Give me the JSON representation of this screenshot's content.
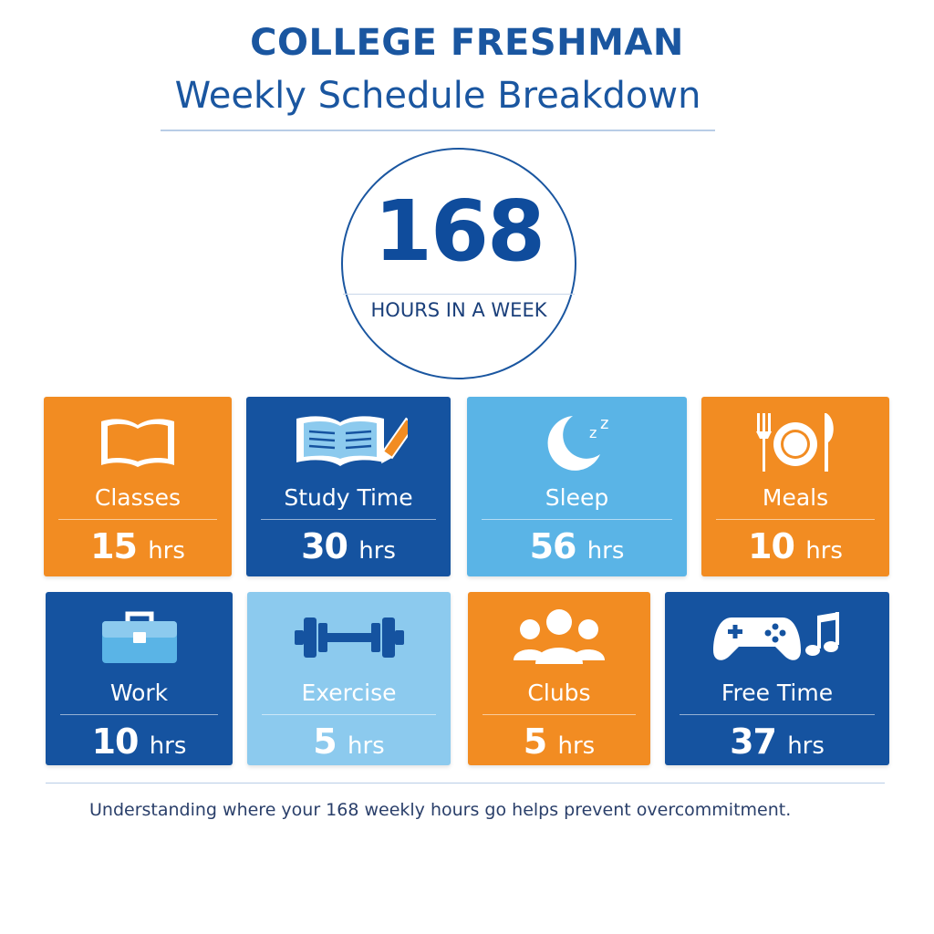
{
  "header": {
    "title": "COLLEGE FRESHMAN",
    "subtitle": "Weekly Schedule Breakdown"
  },
  "total": {
    "number": "168",
    "label": "HOURS IN A WEEK"
  },
  "colors": {
    "orange": "#f28c22",
    "dark_blue": "#1553a0",
    "light_blue": "#5ab4e6",
    "pale_blue": "#8ccaee",
    "accent_text": "#1a56a0"
  },
  "activities": [
    {
      "label": "Classes",
      "value": "15",
      "unit": "hrs",
      "icon": "open-book-icon"
    },
    {
      "label": "Study Time",
      "value": "30",
      "unit": "hrs",
      "icon": "book-pencil-icon"
    },
    {
      "label": "Sleep",
      "value": "56",
      "unit": "hrs",
      "icon": "moon-icon"
    },
    {
      "label": "Meals",
      "value": "10",
      "unit": "hrs",
      "icon": "utensils-icon"
    },
    {
      "label": "Work",
      "value": "10",
      "unit": "hrs",
      "icon": "briefcase-icon"
    },
    {
      "label": "Exercise",
      "value": "5",
      "unit": "hrs",
      "icon": "dumbbell-icon"
    },
    {
      "label": "Clubs",
      "value": "5",
      "unit": "hrs",
      "icon": "group-icon"
    },
    {
      "label": "Free Time",
      "value": "37",
      "unit": "hrs",
      "icon": "gamepad-music-icon"
    }
  ],
  "footnote": "Understanding where your 168 weekly hours go helps prevent overcommitment."
}
